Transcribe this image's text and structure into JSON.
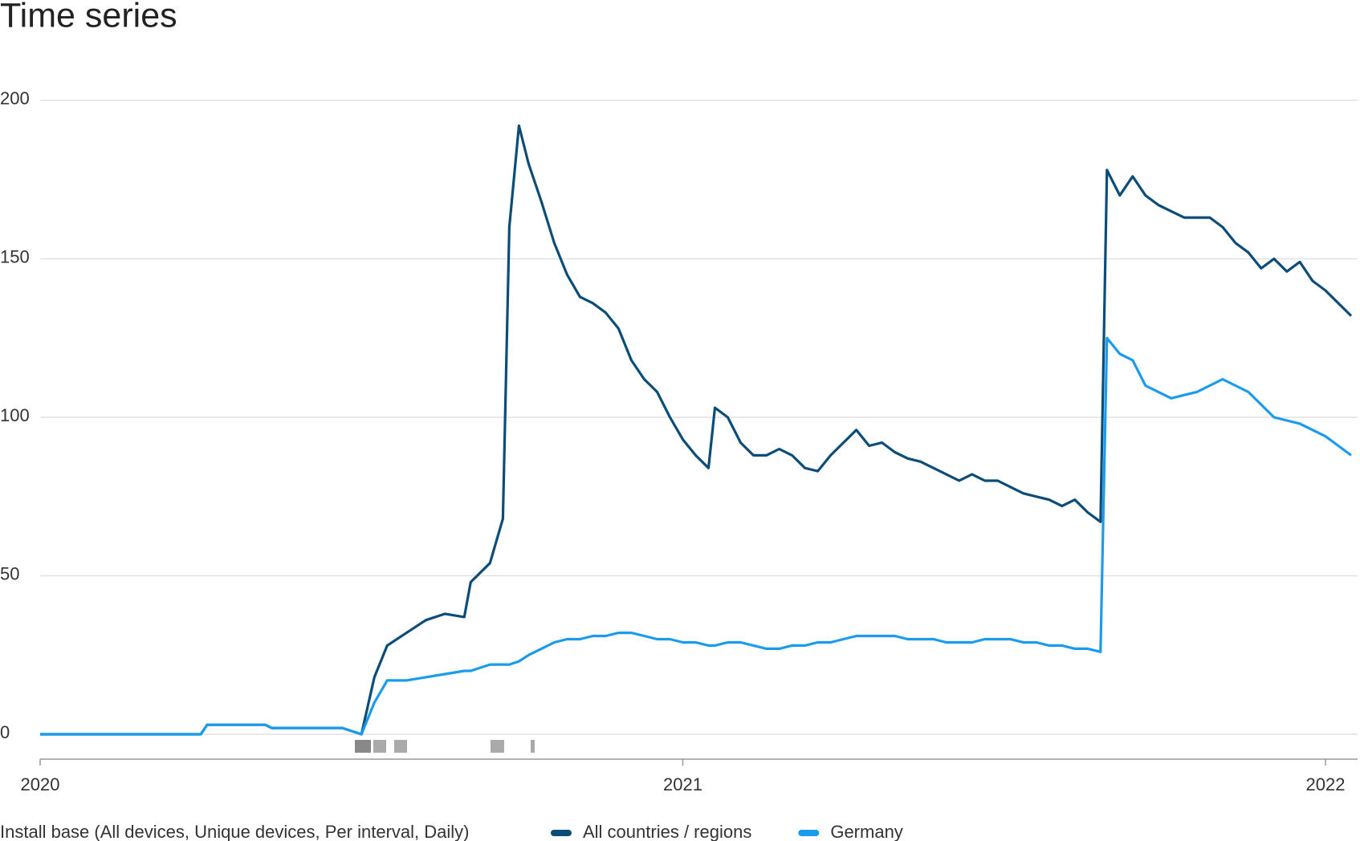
{
  "chart_data": {
    "type": "line",
    "title": "Time series",
    "legend_title": "Install base (All devices, Unique devices, Per interval, Daily)",
    "x": [
      2020,
      2020.25,
      2020.26,
      2020.35,
      2020.36,
      2020.47,
      2020.5,
      2020.52,
      2020.54,
      2020.57,
      2020.6,
      2020.63,
      2020.66,
      2020.67,
      2020.7,
      2020.72,
      2020.73,
      2020.745,
      2020.76,
      2020.78,
      2020.8,
      2020.82,
      2020.84,
      2020.86,
      2020.88,
      2020.9,
      2020.92,
      2020.94,
      2020.96,
      2020.98,
      2021.0,
      2021.02,
      2021.04,
      2021.05,
      2021.07,
      2021.09,
      2021.11,
      2021.13,
      2021.15,
      2021.17,
      2021.19,
      2021.21,
      2021.23,
      2021.25,
      2021.27,
      2021.29,
      2021.31,
      2021.33,
      2021.35,
      2021.37,
      2021.39,
      2021.41,
      2021.43,
      2021.45,
      2021.47,
      2021.49,
      2021.51,
      2021.53,
      2021.55,
      2021.57,
      2021.59,
      2021.61,
      2021.63,
      2021.65,
      2021.66,
      2021.68,
      2021.7,
      2021.72,
      2021.74,
      2021.76,
      2021.78,
      2021.8,
      2021.82,
      2021.84,
      2021.86,
      2021.88,
      2021.9,
      2021.92,
      2021.94,
      2021.96,
      2021.98,
      2022.0,
      2022.02,
      2022.04
    ],
    "series": [
      {
        "name": "All countries / regions",
        "color": "#0b4d78",
        "values": [
          0,
          0,
          3,
          3,
          2,
          2,
          0,
          18,
          28,
          32,
          36,
          38,
          37,
          48,
          54,
          68,
          160,
          192,
          180,
          168,
          155,
          145,
          138,
          136,
          133,
          128,
          118,
          112,
          108,
          100,
          93,
          88,
          84,
          103,
          100,
          92,
          88,
          88,
          90,
          88,
          84,
          83,
          88,
          92,
          96,
          91,
          92,
          89,
          87,
          86,
          84,
          82,
          80,
          82,
          80,
          80,
          78,
          76,
          75,
          74,
          72,
          74,
          70,
          67,
          178,
          170,
          176,
          170,
          167,
          165,
          163,
          163,
          163,
          160,
          155,
          152,
          147,
          150,
          146,
          149,
          143,
          140,
          136,
          132
        ]
      },
      {
        "name": "Germany",
        "color": "#1a9bec",
        "values": [
          0,
          0,
          3,
          3,
          2,
          2,
          0,
          10,
          17,
          17,
          18,
          19,
          20,
          20,
          22,
          22,
          22,
          23,
          25,
          27,
          29,
          30,
          30,
          31,
          31,
          32,
          32,
          31,
          30,
          30,
          29,
          29,
          28,
          28,
          29,
          29,
          28,
          27,
          27,
          28,
          28,
          29,
          29,
          30,
          31,
          31,
          31,
          31,
          30,
          30,
          30,
          29,
          29,
          29,
          30,
          30,
          30,
          29,
          29,
          28,
          28,
          27,
          27,
          26,
          125,
          120,
          118,
          110,
          108,
          106,
          107,
          108,
          110,
          112,
          110,
          108,
          104,
          100,
          99,
          98,
          96,
          94,
          91,
          88
        ]
      }
    ],
    "xlim": [
      2020,
      2022.05
    ],
    "xticks": [
      2020,
      2021,
      2022
    ],
    "ylim": [
      -8,
      200
    ],
    "yticks": [
      0,
      50,
      100,
      150,
      200
    ],
    "grid": true
  }
}
